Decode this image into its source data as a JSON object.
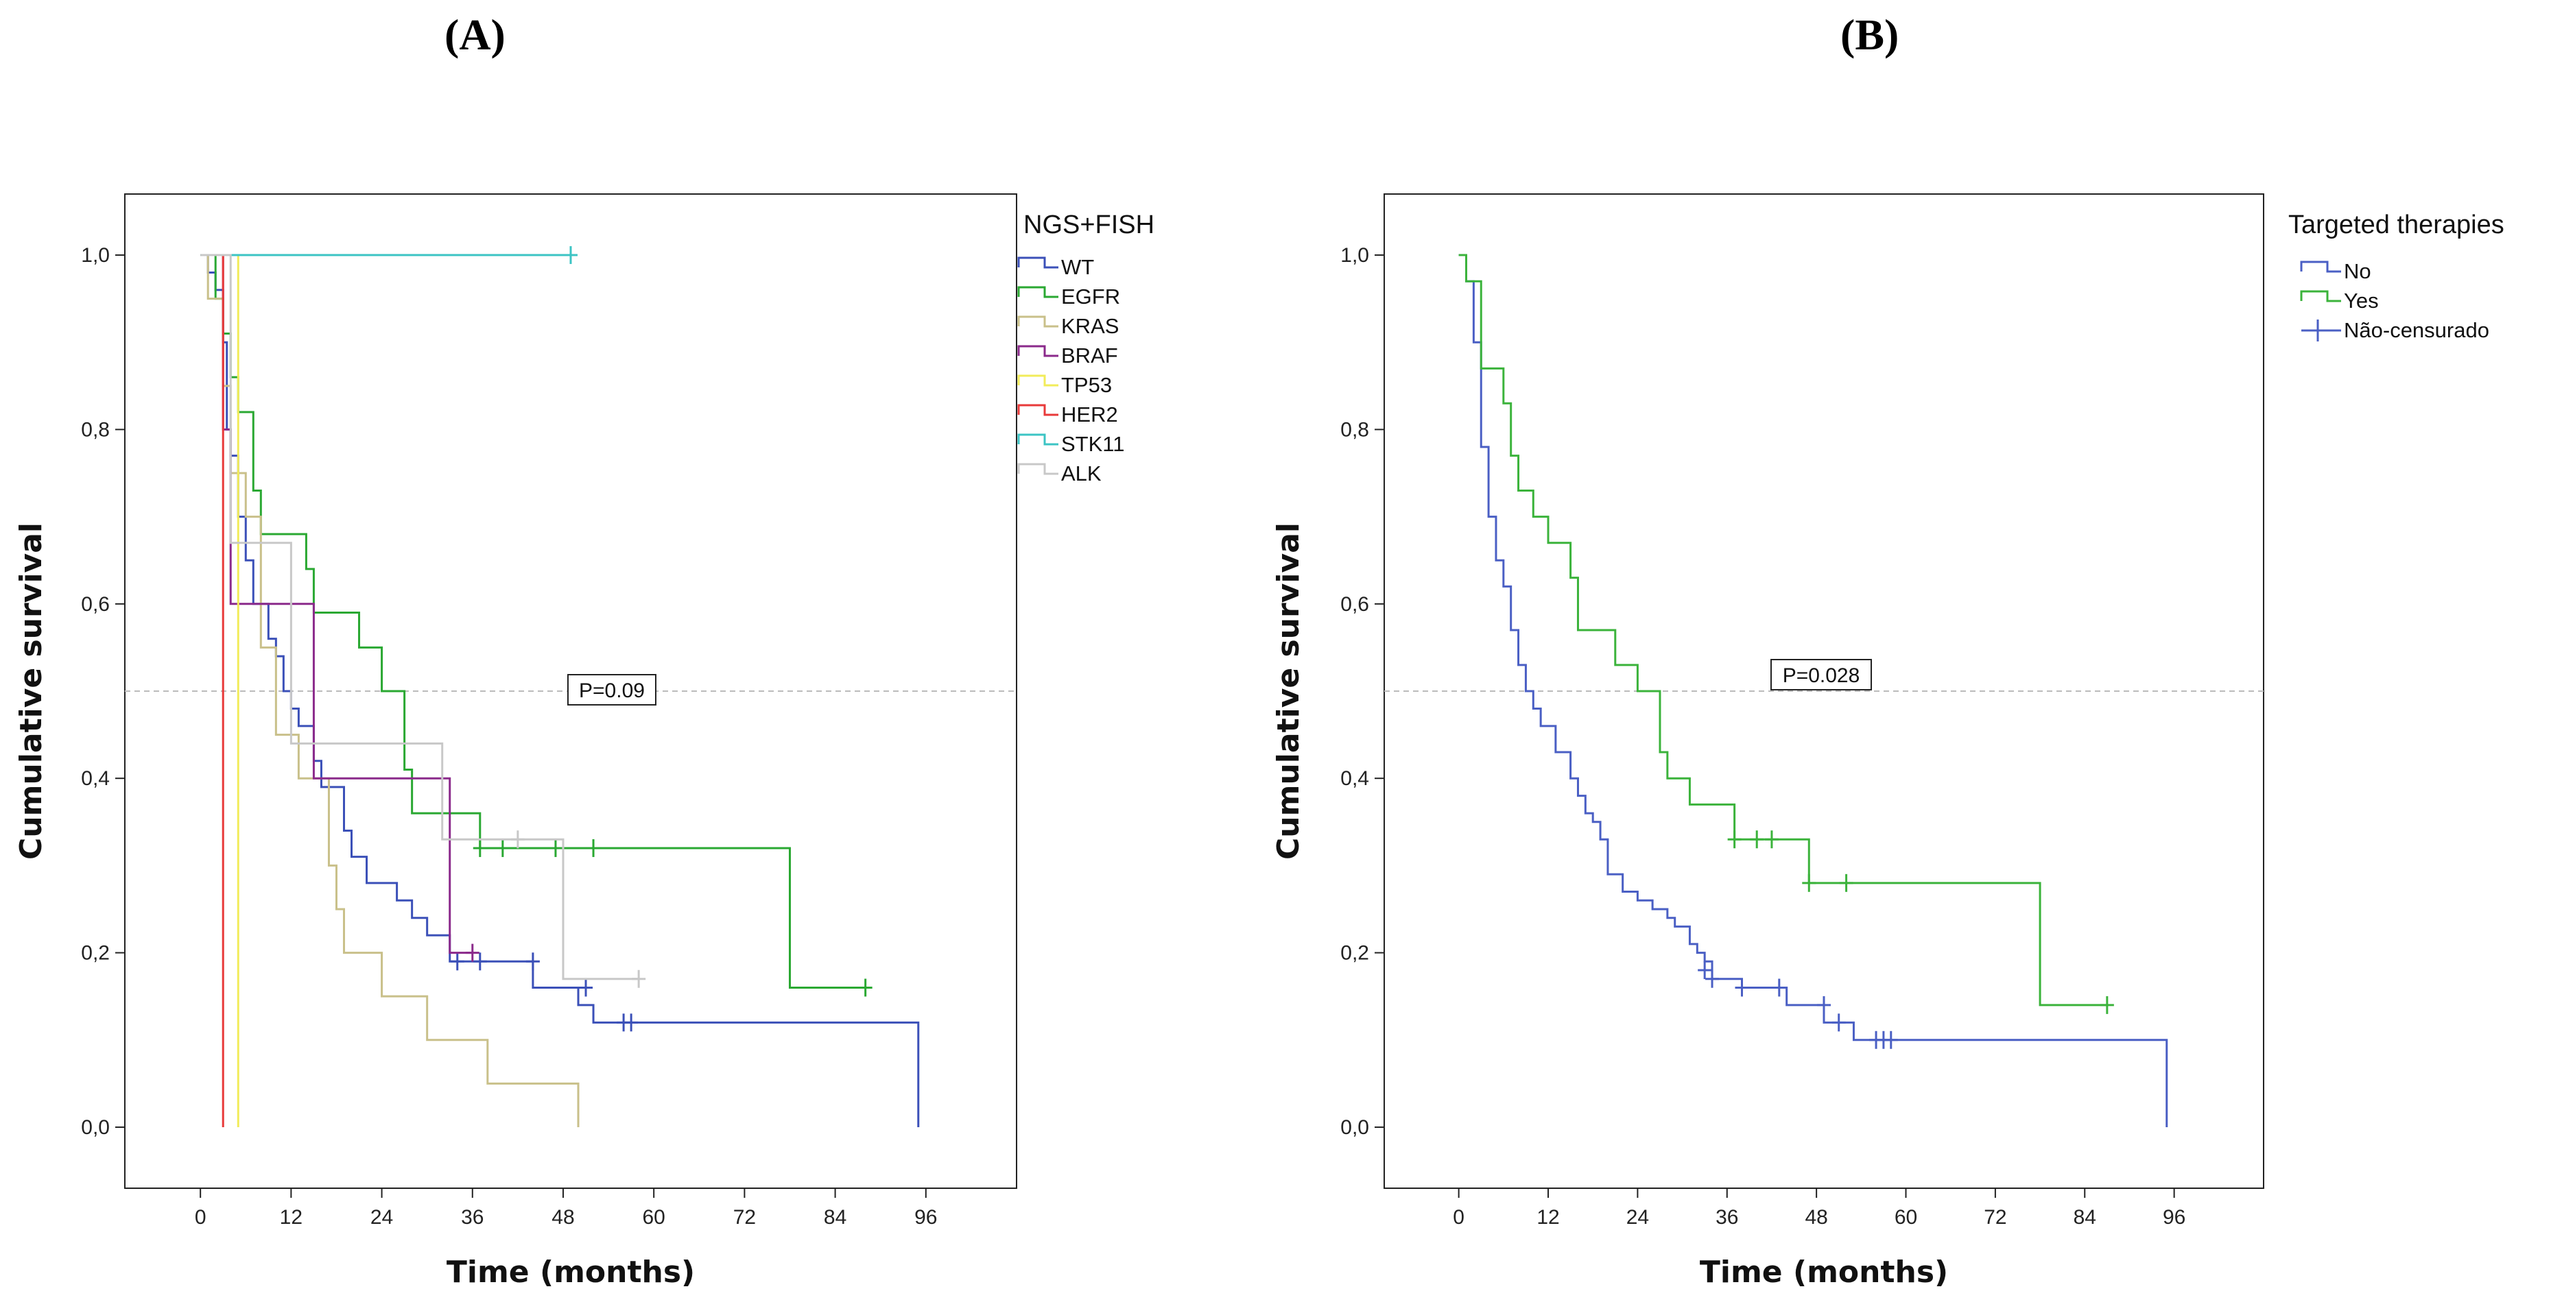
{
  "panels": {
    "a": "(A)",
    "b": "(B)"
  },
  "chart_data": [
    {
      "type": "line",
      "subtype": "kaplan-meier",
      "panel": "(A)",
      "xlabel": "Time (months)",
      "ylabel": "Cumulative survival",
      "xlim": [
        -10,
        108
      ],
      "ylim": [
        -0.07,
        1.07
      ],
      "xticks": [
        0,
        12,
        24,
        36,
        48,
        60,
        72,
        84,
        96
      ],
      "xtick_labels": [
        "0",
        "12",
        "24",
        "36",
        "48",
        "60",
        "72",
        "84",
        "96"
      ],
      "yticks": [
        0,
        0.2,
        0.4,
        0.6,
        0.8,
        1.0
      ],
      "ytick_labels": [
        "0,0",
        "0,2",
        "0,4",
        "0,6",
        "0,8",
        "1,0"
      ],
      "reference_line": 0.5,
      "annotation": "P=0.09",
      "legend_title": "NGS+FISH",
      "legend_position": "right",
      "series": [
        {
          "name": "WT",
          "color": "#3b50b8",
          "steps": [
            [
              0,
              1.0
            ],
            [
              1,
              0.98
            ],
            [
              2,
              0.96
            ],
            [
              3,
              0.9
            ],
            [
              3.5,
              0.8
            ],
            [
              4,
              0.77
            ],
            [
              5,
              0.7
            ],
            [
              6,
              0.65
            ],
            [
              7,
              0.6
            ],
            [
              9,
              0.56
            ],
            [
              10,
              0.54
            ],
            [
              11,
              0.5
            ],
            [
              12,
              0.48
            ],
            [
              13,
              0.46
            ],
            [
              15,
              0.42
            ],
            [
              16,
              0.39
            ],
            [
              19,
              0.34
            ],
            [
              20,
              0.31
            ],
            [
              22,
              0.28
            ],
            [
              26,
              0.26
            ],
            [
              28,
              0.24
            ],
            [
              30,
              0.22
            ],
            [
              33,
              0.19
            ],
            [
              44,
              0.16
            ],
            [
              50,
              0.14
            ],
            [
              52,
              0.12
            ],
            [
              95,
              0.0
            ]
          ],
          "end": 95,
          "censored": [
            [
              34,
              0.19
            ],
            [
              37,
              0.19
            ],
            [
              44,
              0.19
            ],
            [
              51,
              0.16
            ],
            [
              56,
              0.12
            ],
            [
              57,
              0.12
            ]
          ]
        },
        {
          "name": "EGFR",
          "color": "#2aa832",
          "steps": [
            [
              0,
              1.0
            ],
            [
              2,
              0.95
            ],
            [
              3,
              0.91
            ],
            [
              4,
              0.86
            ],
            [
              5,
              0.82
            ],
            [
              7,
              0.73
            ],
            [
              8,
              0.68
            ],
            [
              14,
              0.64
            ],
            [
              15,
              0.59
            ],
            [
              21,
              0.55
            ],
            [
              24,
              0.5
            ],
            [
              27,
              0.41
            ],
            [
              28,
              0.36
            ],
            [
              37,
              0.32
            ],
            [
              78,
              0.16
            ]
          ],
          "end": 88,
          "censored": [
            [
              37,
              0.32
            ],
            [
              40,
              0.32
            ],
            [
              47,
              0.32
            ],
            [
              52,
              0.32
            ],
            [
              88,
              0.16
            ]
          ]
        },
        {
          "name": "KRAS",
          "color": "#c9c08a",
          "steps": [
            [
              0,
              1.0
            ],
            [
              1,
              0.95
            ],
            [
              3,
              0.85
            ],
            [
              4,
              0.75
            ],
            [
              6,
              0.7
            ],
            [
              8,
              0.55
            ],
            [
              10,
              0.45
            ],
            [
              13,
              0.4
            ],
            [
              17,
              0.3
            ],
            [
              18,
              0.25
            ],
            [
              19,
              0.2
            ],
            [
              24,
              0.15
            ],
            [
              30,
              0.1
            ],
            [
              38,
              0.05
            ],
            [
              50,
              0.0
            ]
          ],
          "end": 50,
          "censored": []
        },
        {
          "name": "BRAF",
          "color": "#8b2a8b",
          "steps": [
            [
              0,
              1.0
            ],
            [
              3,
              0.8
            ],
            [
              4,
              0.6
            ],
            [
              15,
              0.4
            ],
            [
              33,
              0.2
            ]
          ],
          "end": 36,
          "censored": [
            [
              36,
              0.2
            ]
          ]
        },
        {
          "name": "TP53",
          "color": "#f2ec5a",
          "steps": [
            [
              0,
              1.0
            ],
            [
              5,
              0.0
            ]
          ],
          "end": 5,
          "censored": []
        },
        {
          "name": "HER2",
          "color": "#e83a3a",
          "steps": [
            [
              0,
              1.0
            ],
            [
              3,
              0.0
            ]
          ],
          "end": 3,
          "censored": []
        },
        {
          "name": "STK11",
          "color": "#3cc4c4",
          "steps": [
            [
              0,
              1.0
            ]
          ],
          "end": 49,
          "censored": [
            [
              49,
              1.0
            ]
          ]
        },
        {
          "name": "ALK",
          "color": "#c8c8c8",
          "steps": [
            [
              0,
              1.0
            ],
            [
              4,
              0.67
            ],
            [
              12,
              0.44
            ],
            [
              32,
              0.33
            ],
            [
              48,
              0.17
            ]
          ],
          "end": 58,
          "censored": [
            [
              42,
              0.33
            ],
            [
              58,
              0.17
            ]
          ]
        }
      ]
    },
    {
      "type": "line",
      "subtype": "kaplan-meier",
      "panel": "(B)",
      "xlabel": "Time (months)",
      "ylabel": "Cumulative survival",
      "xlim": [
        -10,
        108
      ],
      "ylim": [
        -0.07,
        1.07
      ],
      "xticks": [
        0,
        12,
        24,
        36,
        48,
        60,
        72,
        84,
        96
      ],
      "xtick_labels": [
        "0",
        "12",
        "24",
        "36",
        "48",
        "60",
        "72",
        "84",
        "96"
      ],
      "yticks": [
        0,
        0.2,
        0.4,
        0.6,
        0.8,
        1.0
      ],
      "ytick_labels": [
        "0,0",
        "0,2",
        "0,4",
        "0,6",
        "0,8",
        "1,0"
      ],
      "reference_line": 0.5,
      "annotation": "P=0.028",
      "legend_title": "Targeted therapies",
      "legend_position": "right",
      "legend_extra": "Não-censurado",
      "series": [
        {
          "name": "No",
          "color": "#4a5fc4",
          "steps": [
            [
              0,
              1.0
            ],
            [
              1,
              0.97
            ],
            [
              2,
              0.9
            ],
            [
              3,
              0.78
            ],
            [
              4,
              0.7
            ],
            [
              5,
              0.65
            ],
            [
              6,
              0.62
            ],
            [
              7,
              0.57
            ],
            [
              8,
              0.53
            ],
            [
              9,
              0.5
            ],
            [
              10,
              0.48
            ],
            [
              11,
              0.46
            ],
            [
              13,
              0.43
            ],
            [
              15,
              0.4
            ],
            [
              16,
              0.38
            ],
            [
              17,
              0.36
            ],
            [
              18,
              0.35
            ],
            [
              19,
              0.33
            ],
            [
              20,
              0.29
            ],
            [
              22,
              0.27
            ],
            [
              24,
              0.26
            ],
            [
              26,
              0.25
            ],
            [
              28,
              0.24
            ],
            [
              29,
              0.23
            ],
            [
              31,
              0.21
            ],
            [
              32,
              0.2
            ],
            [
              33,
              0.19
            ],
            [
              34,
              0.17
            ],
            [
              38,
              0.16
            ],
            [
              44,
              0.14
            ],
            [
              49,
              0.12
            ],
            [
              53,
              0.1
            ],
            [
              95,
              0.0
            ]
          ],
          "end": 95,
          "censored": [
            [
              33,
              0.18
            ],
            [
              34,
              0.17
            ],
            [
              38,
              0.16
            ],
            [
              43,
              0.16
            ],
            [
              49,
              0.14
            ],
            [
              51,
              0.12
            ],
            [
              56,
              0.1
            ],
            [
              57,
              0.1
            ],
            [
              58,
              0.1
            ]
          ]
        },
        {
          "name": "Yes",
          "color": "#3bb33b",
          "steps": [
            [
              0,
              1.0
            ],
            [
              1,
              0.97
            ],
            [
              3,
              0.87
            ],
            [
              6,
              0.83
            ],
            [
              7,
              0.77
            ],
            [
              8,
              0.73
            ],
            [
              10,
              0.7
            ],
            [
              12,
              0.67
            ],
            [
              15,
              0.63
            ],
            [
              16,
              0.57
            ],
            [
              21,
              0.53
            ],
            [
              24,
              0.5
            ],
            [
              27,
              0.43
            ],
            [
              28,
              0.4
            ],
            [
              31,
              0.37
            ],
            [
              37,
              0.33
            ],
            [
              47,
              0.28
            ],
            [
              78,
              0.14
            ]
          ],
          "end": 87,
          "censored": [
            [
              37,
              0.33
            ],
            [
              40,
              0.33
            ],
            [
              42,
              0.33
            ],
            [
              47,
              0.28
            ],
            [
              52,
              0.28
            ],
            [
              87,
              0.14
            ]
          ]
        }
      ]
    }
  ]
}
